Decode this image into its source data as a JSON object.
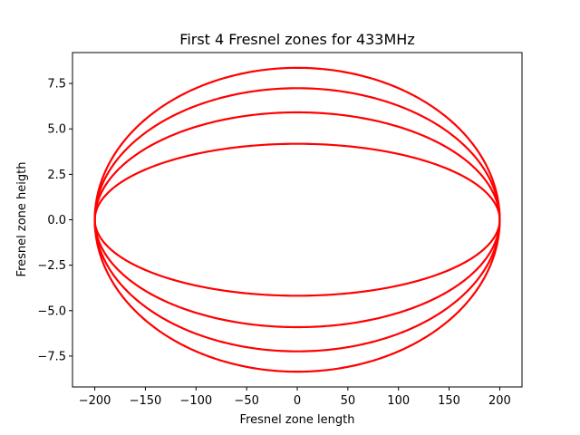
{
  "chart_data": {
    "type": "line",
    "title": "First 4 Fresnel zones for 433MHz",
    "xlabel": "Fresnel zone length",
    "ylabel": "Fresnel zone heigth",
    "xlim": [
      -222,
      222
    ],
    "ylim": [
      -9.2,
      9.2
    ],
    "x_ticks": [
      -200,
      -150,
      -100,
      -50,
      0,
      50,
      100,
      150,
      200
    ],
    "x_tick_labels": [
      "−200",
      "−150",
      "−100",
      "−50",
      "0",
      "50",
      "100",
      "150",
      "200"
    ],
    "y_ticks": [
      -7.5,
      -5.0,
      -2.5,
      0.0,
      2.5,
      5.0,
      7.5
    ],
    "y_tick_labels": [
      "−7.5",
      "−5.0",
      "−2.5",
      "0.0",
      "2.5",
      "5.0",
      "7.5"
    ],
    "grid": false,
    "line_color": "#ff0000",
    "series": [
      {
        "zone": 1,
        "x": [
          -200,
          -150,
          -100,
          -50,
          0,
          50,
          100,
          150,
          200
        ],
        "upper": [
          0,
          2.77,
          3.63,
          4.05,
          4.18,
          4.05,
          3.63,
          2.77,
          0
        ],
        "lower": [
          0,
          -2.77,
          -3.63,
          -4.05,
          -4.18,
          -4.05,
          -3.63,
          -2.77,
          0
        ]
      },
      {
        "zone": 2,
        "x": [
          -200,
          -150,
          -100,
          -50,
          0,
          50,
          100,
          150,
          200
        ],
        "upper": [
          0,
          3.91,
          5.12,
          5.73,
          5.91,
          5.73,
          5.12,
          3.91,
          0
        ],
        "lower": [
          0,
          -3.91,
          -5.12,
          -5.73,
          -5.91,
          -5.73,
          -5.12,
          -3.91,
          0
        ]
      },
      {
        "zone": 3,
        "x": [
          -200,
          -150,
          -100,
          -50,
          0,
          50,
          100,
          150,
          200
        ],
        "upper": [
          0,
          4.79,
          6.28,
          7.01,
          7.24,
          7.01,
          6.28,
          4.79,
          0
        ],
        "lower": [
          0,
          -4.79,
          -6.28,
          -7.01,
          -7.24,
          -7.01,
          -6.28,
          -4.79,
          0
        ]
      },
      {
        "zone": 4,
        "x": [
          -200,
          -150,
          -100,
          -50,
          0,
          50,
          100,
          150,
          200
        ],
        "upper": [
          0,
          5.53,
          7.25,
          8.1,
          8.36,
          8.1,
          7.25,
          5.53,
          0
        ],
        "lower": [
          0,
          -5.53,
          -7.25,
          -8.1,
          -8.36,
          -8.1,
          -7.25,
          -5.53,
          0
        ]
      }
    ]
  }
}
